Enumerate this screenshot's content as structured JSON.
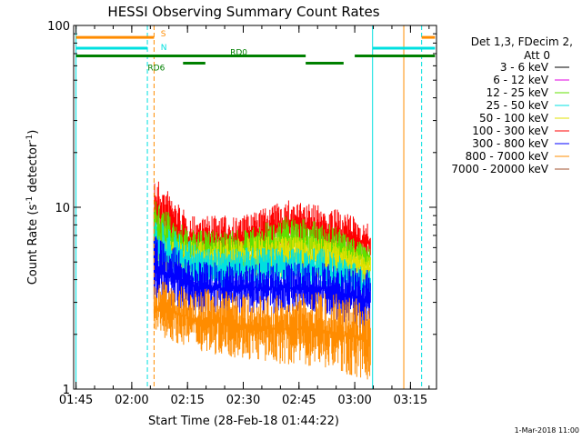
{
  "chart_data": {
    "type": "line",
    "title": "HESSI Observing Summary Count Rates",
    "xlabel": "Start Time (28-Feb-18 01:44:22)",
    "ylabel": "Count Rate (s⁻¹ detector⁻¹)",
    "yscale": "log",
    "ylim": [
      1,
      100
    ],
    "xlim": [
      "01:44:22",
      "03:22:00"
    ],
    "x_ticks": [
      "01:45",
      "02:00",
      "02:15",
      "02:30",
      "02:45",
      "03:00",
      "03:15"
    ],
    "y_ticks": [
      "1",
      "10",
      "100"
    ],
    "grid": false,
    "legend": {
      "placement": "right",
      "header": [
        "Det 1,3, FDecim 2,",
        "Att 0"
      ],
      "entries": [
        {
          "label": "3 - 6 keV",
          "color": "#000000"
        },
        {
          "label": "6 - 12 keV",
          "color": "#e000e0"
        },
        {
          "label": "12 - 25 keV",
          "color": "#60e000"
        },
        {
          "label": "25 - 50 keV",
          "color": "#00e0e0"
        },
        {
          "label": "50 - 100 keV",
          "color": "#e0e000"
        },
        {
          "label": "100 - 300 keV",
          "color": "#ff0000"
        },
        {
          "label": "300 - 800 keV",
          "color": "#0000ff"
        },
        {
          "label": "800 - 7000 keV",
          "color": "#ff8c00"
        },
        {
          "label": "7000 - 20000 keV",
          "color": "#a0522d"
        }
      ]
    },
    "series": [
      {
        "name": "100 - 300 keV",
        "color": "#ff0000",
        "band": [
          [
            2.1,
            6,
            15
          ],
          [
            2.25,
            5,
            9
          ],
          [
            2.5,
            5,
            9
          ],
          [
            2.7,
            6,
            11
          ],
          [
            2.9,
            5,
            10
          ],
          [
            3.07,
            5,
            8
          ]
        ]
      },
      {
        "name": "12 - 25 keV",
        "color": "#60e000",
        "band": [
          [
            2.1,
            5,
            11
          ],
          [
            2.25,
            4.5,
            7.5
          ],
          [
            2.5,
            4.5,
            7.5
          ],
          [
            2.7,
            5,
            9
          ],
          [
            2.9,
            4.5,
            8
          ],
          [
            3.07,
            4.5,
            6
          ]
        ]
      },
      {
        "name": "50 - 100 keV",
        "color": "#e0e000",
        "band": [
          [
            2.1,
            4.5,
            7
          ],
          [
            2.3,
            4,
            6.5
          ],
          [
            2.6,
            4,
            7
          ],
          [
            2.85,
            4,
            7
          ],
          [
            3.07,
            3.8,
            5.5
          ]
        ]
      },
      {
        "name": "25 - 50 keV",
        "color": "#00e0e0",
        "band": [
          [
            2.1,
            4,
            9
          ],
          [
            2.3,
            3.6,
            6
          ],
          [
            2.6,
            3.5,
            6
          ],
          [
            2.85,
            3.5,
            6
          ],
          [
            3.07,
            3,
            4.5
          ]
        ]
      },
      {
        "name": "300 - 800 keV",
        "color": "#0000ff",
        "band": [
          [
            2.1,
            3,
            7
          ],
          [
            2.3,
            2.6,
            5
          ],
          [
            2.6,
            2.6,
            5
          ],
          [
            2.85,
            2.6,
            5
          ],
          [
            3.07,
            2,
            4.5
          ]
        ]
      },
      {
        "name": "800 - 7000 keV",
        "color": "#ff8c00",
        "band": [
          [
            2.1,
            2,
            4
          ],
          [
            2.3,
            1.6,
            3.6
          ],
          [
            2.6,
            1.4,
            3.3
          ],
          [
            2.85,
            1.3,
            3.5
          ],
          [
            3.07,
            1.1,
            3
          ]
        ]
      }
    ],
    "flags": [
      {
        "label": "S",
        "color": "#ff8c00",
        "level": 86,
        "segments": [
          [
            1.75,
            2.1
          ],
          [
            3.3,
            3.36
          ]
        ]
      },
      {
        "label": "N",
        "color": "#00e0e0",
        "level": 75,
        "segments": [
          [
            1.75,
            2.07
          ],
          [
            3.08,
            3.36
          ]
        ]
      },
      {
        "label": "RD0",
        "color": "#008000",
        "level": 68,
        "segments": [
          [
            1.75,
            2.78
          ],
          [
            3.0,
            3.36
          ]
        ]
      },
      {
        "label": "RD6",
        "color": "#008000",
        "level": 62,
        "segments": [
          [
            2.23,
            2.33
          ],
          [
            2.78,
            2.95
          ]
        ]
      }
    ],
    "vlines": [
      {
        "x": 1.75,
        "color": "#00e0e0",
        "style": "solid"
      },
      {
        "x": 2.07,
        "color": "#00e0e0",
        "style": "dashed"
      },
      {
        "x": 2.1,
        "color": "#ff8c00",
        "style": "dashed"
      },
      {
        "x": 3.08,
        "color": "#00e0e0",
        "style": "solid"
      },
      {
        "x": 3.22,
        "color": "#ff8c00",
        "style": "solid"
      },
      {
        "x": 3.3,
        "color": "#00e0e0",
        "style": "dashed"
      }
    ]
  },
  "footer": {
    "timestamp": "1-Mar-2018 11:00"
  }
}
